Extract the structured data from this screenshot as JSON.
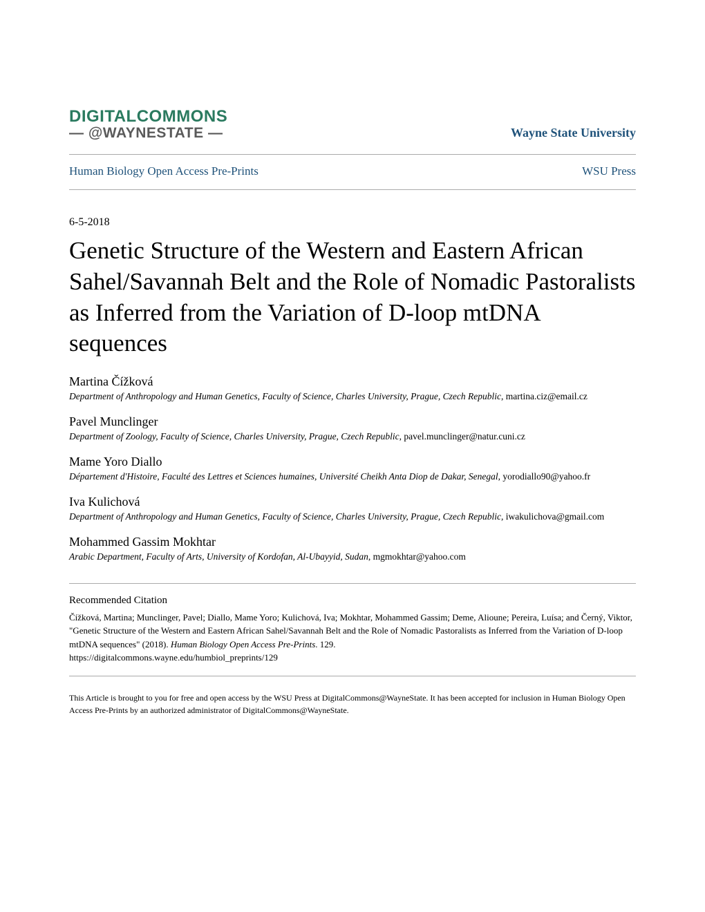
{
  "logo": {
    "line1": "DIGITALCOMMONS",
    "line2": "— @WAYNESTATE —"
  },
  "university_name": "Wayne State University",
  "nav": {
    "left": "Human Biology Open Access Pre-Prints",
    "right": "WSU Press"
  },
  "date": "6-5-2018",
  "title": "Genetic Structure of the Western and Eastern African Sahel/Savannah Belt and the Role of Nomadic Pastoralists as Inferred from the Variation of D-loop mtDNA sequences",
  "authors": [
    {
      "name": "Martina Čížková",
      "affiliation": "Department of Anthropology and Human Genetics, Faculty of Science, Charles University, Prague, Czech Republic",
      "email": "martina.ciz@email.cz"
    },
    {
      "name": "Pavel Munclinger",
      "affiliation": "Department of Zoology, Faculty of Science, Charles University, Prague, Czech Republic",
      "email": "pavel.munclinger@natur.cuni.cz"
    },
    {
      "name": "Mame Yoro Diallo",
      "affiliation": "Département d'Histoire, Faculté des Lettres et Sciences humaines, Université Cheikh Anta Diop de Dakar, Senegal",
      "email": "yorodiallo90@yahoo.fr"
    },
    {
      "name": "Iva Kulichová",
      "affiliation": "Department of Anthropology and Human Genetics, Faculty of Science, Charles University, Prague, Czech Republic",
      "email": "iwakulichova@gmail.com"
    },
    {
      "name": "Mohammed Gassim Mokhtar",
      "affiliation": "Arabic Department, Faculty of Arts, University of Kordofan, Al-Ubayyid, Sudan",
      "email": "mgmokhtar@yahoo.com"
    }
  ],
  "citation": {
    "heading": "Recommended Citation",
    "authors_list": "Čížková, Martina; Munclinger, Pavel; Diallo, Mame Yoro; Kulichová, Iva; Mokhtar, Mohammed Gassim; Deme, Alioune; Pereira, Luísa; and Černý, Viktor, \"Genetic Structure of the Western and Eastern African Sahel/Savannah Belt and the Role of Nomadic Pastoralists as Inferred from the Variation of D-loop mtDNA sequences\" (2018). ",
    "journal": "Human Biology Open Access Pre-Prints",
    "issue": ". 129.",
    "url": "https://digitalcommons.wayne.edu/humbiol_preprints/129"
  },
  "footer": "This Article is brought to you for free and open access by the WSU Press at DigitalCommons@WayneState. It has been accepted for inclusion in Human Biology Open Access Pre-Prints by an authorized administrator of DigitalCommons@WayneState.",
  "colors": {
    "logo_green": "#2a7a5f",
    "logo_gray": "#5a5a5f",
    "link_blue": "#1f527a",
    "text_black": "#000000",
    "divider_gray": "#aaaaaa",
    "background": "#ffffff"
  },
  "typography": {
    "body_font": "Georgia, serif",
    "logo_font": "Arial, sans-serif",
    "title_fontsize": 35,
    "author_name_fontsize": 18,
    "affiliation_fontsize": 13.5,
    "nav_fontsize": 17,
    "citation_fontsize": 13,
    "footer_fontsize": 12
  }
}
